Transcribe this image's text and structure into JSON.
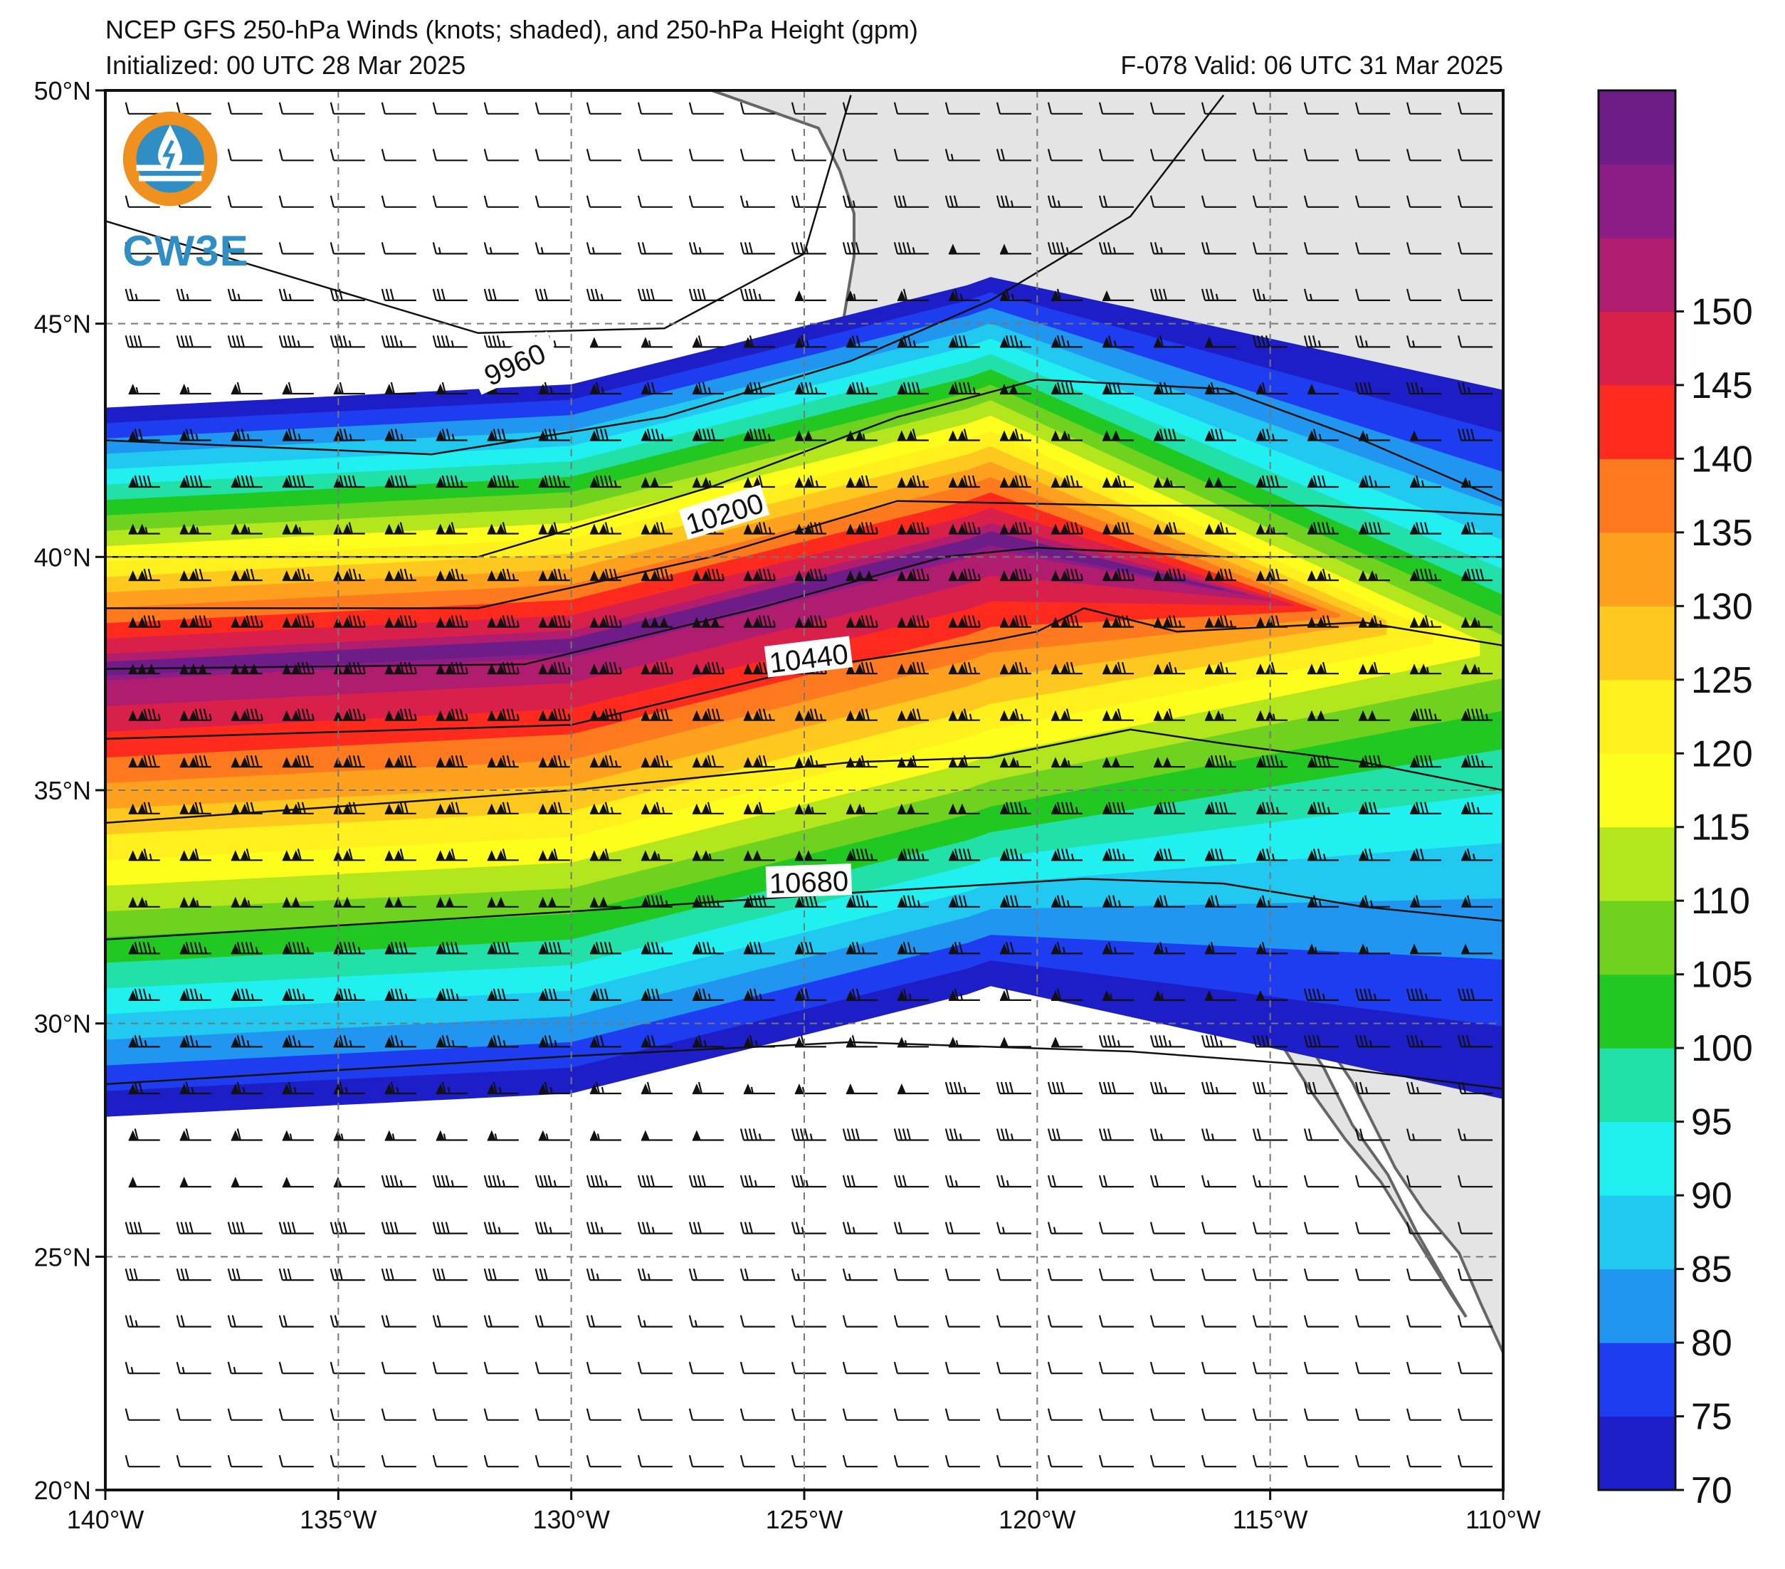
{
  "header": {
    "title": "NCEP GFS 250-hPa Winds (knots; shaded), and 250-hPa Height (gpm)",
    "initialized": "Initialized: 00 UTC 28 Mar 2025",
    "valid": "F-078  Valid: 06 UTC 31 Mar 2025"
  },
  "logo": {
    "text": "CW3E"
  },
  "map": {
    "lon_range": [
      -140,
      -110
    ],
    "lat_range": [
      20,
      50
    ],
    "lon_labels": [
      "140°W",
      "135°W",
      "130°W",
      "125°W",
      "120°W",
      "115°W",
      "110°W"
    ],
    "lat_labels": [
      "50°N",
      "45°N",
      "40°N",
      "35°N",
      "30°N",
      "25°N",
      "20°N"
    ],
    "contour_labels": [
      "9960",
      "10200",
      "10440",
      "10680"
    ],
    "colorbar_ticks": [
      "70",
      "75",
      "80",
      "85",
      "90",
      "95",
      "100",
      "105",
      "110",
      "115",
      "120",
      "125",
      "130",
      "135",
      "140",
      "145",
      "150"
    ],
    "colorbar_colors": [
      "#1e1ec8",
      "#1e3cf0",
      "#2096f0",
      "#21c8f0",
      "#21f0f0",
      "#21e0a8",
      "#21c821",
      "#6ed21e",
      "#b4e61e",
      "#ffff1e",
      "#fff01e",
      "#ffc81e",
      "#ffa01e",
      "#ff7a1e",
      "#ff2a1e",
      "#d8204a",
      "#b01c6e",
      "#8c1c86",
      "#6e1c88"
    ],
    "land_color": "#e4e4e4"
  }
}
